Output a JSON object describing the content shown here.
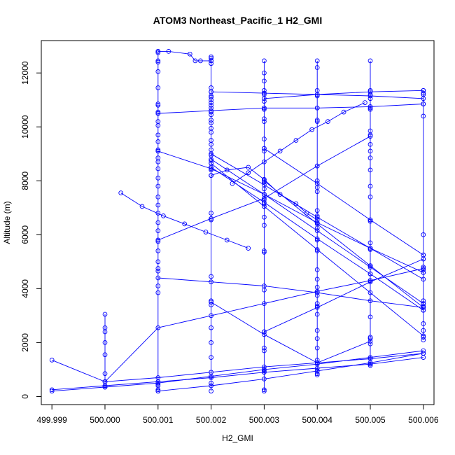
{
  "chart_data": {
    "type": "line",
    "title": "ATOM3 Northeast_Pacific_1 H2_GMI",
    "xlabel": "H2_GMI",
    "ylabel": "Altitude (m)",
    "x_ticks": [
      "499.999",
      "500.000",
      "500.001",
      "500.002",
      "500.003",
      "500.004",
      "500.005",
      "500.006"
    ],
    "y_ticks": [
      "0",
      "2000",
      "4000",
      "6000",
      "8000",
      "10000",
      "12000"
    ],
    "xlim": [
      499.9988,
      500.0062
    ],
    "ylim": [
      -300,
      13200
    ],
    "grid": false,
    "legend": "none",
    "series_color": "#0000ff",
    "marker": "open-circle",
    "series": [
      {
        "x": [
          500.001,
          500.001,
          500.001,
          500.001,
          500.001,
          500.001,
          500.001,
          500.001,
          500.001,
          500.001,
          500.001,
          500.001,
          500.001,
          500.001,
          500.001,
          500.001,
          500.001,
          500.001,
          500.001,
          500.001,
          500.001,
          500.001,
          500.001,
          500.001,
          500.001,
          500.001,
          500.001,
          500.001,
          500.001,
          500.001,
          500.001,
          500.001,
          500.001,
          500.001,
          500.001,
          500.001,
          500.001,
          500.001
        ],
        "y": [
          12800,
          12750,
          12450,
          12400,
          12050,
          11450,
          10850,
          10800,
          10550,
          10500,
          10200,
          10050,
          9700,
          9450,
          9150,
          9100,
          8850,
          8700,
          8450,
          8100,
          7800,
          7400,
          7100,
          6800,
          6450,
          6150,
          5800,
          5750,
          5400,
          5000,
          4750,
          4650,
          4100,
          3850,
          450,
          400,
          250,
          200
        ]
      },
      {
        "x": [
          500.002,
          500.002,
          500.002,
          500.002,
          500.002,
          500.002,
          500.002,
          500.002,
          500.002,
          500.002,
          500.002,
          500.002,
          500.002,
          500.002,
          500.002,
          500.002,
          500.002,
          500.002,
          500.002,
          500.002,
          500.002,
          500.002,
          500.002,
          500.002,
          500.002,
          500.002,
          500.002,
          500.002,
          500.002,
          500.002,
          500.002,
          500.002,
          500.002,
          500.002,
          500.002,
          500.002,
          500.002
        ],
        "y": [
          12600,
          12550,
          12450,
          12350,
          11450,
          11300,
          11150,
          11100,
          11000,
          10900,
          10800,
          10700,
          10550,
          10450,
          10250,
          10150,
          9950,
          9800,
          9500,
          9350,
          9150,
          8950,
          8750,
          8650,
          8500,
          8400,
          8200,
          6800,
          6550,
          4450,
          3550,
          3400,
          2550,
          2000,
          1450,
          500,
          200
        ]
      },
      {
        "x": [
          500.003,
          500.003,
          500.003,
          500.003,
          500.003,
          500.003,
          500.003,
          500.003,
          500.003,
          500.003,
          500.003,
          500.003,
          500.003,
          500.003,
          500.003,
          500.003,
          500.003,
          500.003,
          500.003,
          500.003,
          500.003,
          500.003,
          500.003,
          500.003,
          500.003,
          500.003,
          500.003,
          500.003,
          500.003,
          500.003,
          500.003,
          500.003,
          500.003
        ],
        "y": [
          12450,
          12000,
          11700,
          11350,
          11250,
          11200,
          10950,
          10700,
          10650,
          10300,
          10200,
          9550,
          9200,
          9100,
          8050,
          7950,
          7700,
          7500,
          7300,
          7150,
          7050,
          6650,
          6350,
          5400,
          5350,
          3950,
          2400,
          1800,
          1700,
          950,
          900,
          250,
          200
        ]
      },
      {
        "x": [
          500.004,
          500.004,
          500.004,
          500.004,
          500.004,
          500.004,
          500.004,
          500.004,
          500.004,
          500.004,
          500.004,
          500.004,
          500.004,
          500.004,
          500.004,
          500.004,
          500.004,
          500.004,
          500.004,
          500.004,
          500.004,
          500.004,
          500.004,
          500.004,
          500.004,
          500.004,
          500.004,
          500.004,
          500.004,
          500.004,
          500.004
        ],
        "y": [
          12450,
          12200,
          11350,
          11150,
          10700,
          10250,
          10200,
          8550,
          8000,
          7750,
          7600,
          6900,
          6700,
          6450,
          6250,
          5800,
          5400,
          4700,
          4350,
          4050,
          3750,
          3450,
          3350,
          3050,
          2450,
          2150,
          1800,
          1350,
          950,
          850,
          800
        ]
      },
      {
        "x": [
          500.005,
          500.005,
          500.005,
          500.005,
          500.005,
          500.005,
          500.005,
          500.005,
          500.005,
          500.005,
          500.005,
          500.005,
          500.005,
          500.005,
          500.005,
          500.005,
          500.005,
          500.005,
          500.005,
          500.005,
          500.005,
          500.005,
          500.005,
          500.005,
          500.005,
          500.005,
          500.005
        ],
        "y": [
          12450,
          11350,
          11200,
          11050,
          10700,
          10650,
          9850,
          9700,
          9350,
          9100,
          8850,
          8400,
          7800,
          7400,
          6550,
          6500,
          5700,
          5450,
          4850,
          4550,
          4300,
          2950,
          2200,
          2150,
          1950,
          1200,
          1150
        ]
      },
      {
        "x": [
          500.006,
          500.006,
          500.006,
          500.006,
          500.006,
          500.006,
          500.006,
          500.006,
          500.006,
          500.006,
          500.006,
          500.006,
          500.006,
          500.006,
          500.006,
          500.006,
          500.006,
          500.006,
          500.006
        ],
        "y": [
          11350,
          11250,
          11200,
          10850,
          10400,
          6000,
          5250,
          5100,
          4800,
          4700,
          4600,
          3550,
          3450,
          3350,
          3200,
          2700,
          2450,
          2200,
          2100
        ]
      },
      {
        "x": [
          500.0,
          500.0,
          500.0,
          500.0,
          500.0,
          500.0,
          500.0,
          500.0,
          500.0
        ],
        "y": [
          3050,
          2550,
          2400,
          2000,
          1550,
          850,
          550,
          400,
          350
        ]
      },
      {
        "x": [
          500.001,
          500.0012,
          500.0016,
          500.0017,
          500.0018,
          500.002
        ],
        "y": [
          12800,
          12800,
          12700,
          12450,
          12450,
          12450
        ]
      },
      {
        "x": [
          500.002,
          500.0023,
          500.0027,
          500.003,
          500.0033,
          500.0036,
          500.0038,
          500.004
        ],
        "y": [
          8200,
          8400,
          8500,
          8050,
          7500,
          7150,
          6800,
          6550
        ]
      },
      {
        "x": [
          500.0003,
          500.0007,
          500.0011,
          500.0015,
          500.0019,
          500.0023,
          500.0027
        ],
        "y": [
          7550,
          7050,
          6700,
          6400,
          6100,
          5800,
          5500
        ]
      },
      {
        "x": [
          500.0049,
          500.0045,
          500.0042,
          500.0039,
          500.0036,
          500.0033,
          500.003,
          500.0027,
          500.0024
        ],
        "y": [
          10900,
          10550,
          10200,
          9900,
          9500,
          9100,
          8700,
          8300,
          7900
        ]
      },
      {
        "x": [
          499.999,
          500.0,
          500.001,
          500.002,
          500.003,
          500.004,
          500.005,
          500.006
        ],
        "y": [
          1350,
          550,
          700,
          900,
          1100,
          1250,
          1400,
          1600
        ]
      },
      {
        "x": [
          499.999,
          500.0,
          500.001,
          500.002,
          500.003,
          500.004,
          500.005,
          500.006
        ],
        "y": [
          250,
          400,
          550,
          700,
          900,
          1050,
          1200,
          1450
        ]
      },
      {
        "x": [
          499.999,
          500.0,
          500.001,
          500.002,
          500.003,
          500.004,
          500.005,
          500.006
        ],
        "y": [
          200,
          350,
          500,
          750,
          1000,
          1200,
          1450,
          1700
        ]
      },
      {
        "x": [
          500.0,
          500.001,
          500.002,
          500.003,
          500.004,
          500.005,
          500.006
        ],
        "y": [
          550,
          2550,
          3000,
          3450,
          3900,
          4300,
          4750
        ]
      },
      {
        "x": [
          500.001,
          500.002,
          500.003,
          500.004,
          500.005,
          500.006
        ],
        "y": [
          200,
          400,
          650,
          950,
          1250,
          1600
        ]
      },
      {
        "x": [
          500.002,
          500.003,
          500.004,
          500.005,
          500.006
        ],
        "y": [
          8800,
          7500,
          6150,
          4800,
          3450
        ]
      },
      {
        "x": [
          500.002,
          500.003,
          500.004,
          500.005,
          500.006
        ],
        "y": [
          9000,
          7850,
          6650,
          5500,
          4350
        ]
      },
      {
        "x": [
          500.002,
          500.003,
          500.004,
          500.005,
          500.006
        ],
        "y": [
          8650,
          7050,
          5450,
          3850,
          2250
        ]
      },
      {
        "x": [
          500.002,
          500.003,
          500.004,
          500.005,
          500.006
        ],
        "y": [
          8500,
          7200,
          5850,
          4550,
          3200
        ]
      },
      {
        "x": [
          500.001,
          500.002,
          500.003,
          500.004,
          500.005,
          500.006
        ],
        "y": [
          9100,
          8450,
          7500,
          6450,
          5500,
          4600
        ]
      },
      {
        "x": [
          500.003,
          500.004,
          500.005,
          500.006
        ],
        "y": [
          9200,
          7900,
          6550,
          5250
        ]
      },
      {
        "x": [
          500.003,
          500.004,
          500.005,
          500.006
        ],
        "y": [
          8000,
          6400,
          4850,
          3300
        ]
      },
      {
        "x": [
          500.001,
          500.002,
          500.003,
          500.004,
          500.005
        ],
        "y": [
          5800,
          6600,
          7350,
          8550,
          9650
        ]
      },
      {
        "x": [
          500.002,
          500.003,
          500.004,
          500.005,
          500.006
        ],
        "y": [
          11300,
          11250,
          11200,
          11150,
          11050
        ]
      },
      {
        "x": [
          500.001,
          500.002,
          500.003,
          500.004,
          500.005,
          500.006
        ],
        "y": [
          10500,
          10600,
          10700,
          10700,
          10750,
          10850
        ]
      },
      {
        "x": [
          500.003,
          500.004,
          500.005,
          500.006
        ],
        "y": [
          11050,
          11200,
          11300,
          11350
        ]
      },
      {
        "x": [
          500.001,
          500.002,
          500.003,
          500.004,
          500.005,
          500.006
        ],
        "y": [
          4400,
          4250,
          4100,
          3850,
          3550,
          3300
        ]
      },
      {
        "x": [
          500.002,
          500.003,
          500.004,
          500.005
        ],
        "y": [
          3500,
          2300,
          1250,
          2050
        ]
      },
      {
        "x": [
          500.003,
          500.004,
          500.005,
          500.006
        ],
        "y": [
          2400,
          3300,
          4250,
          5100
        ]
      }
    ]
  }
}
